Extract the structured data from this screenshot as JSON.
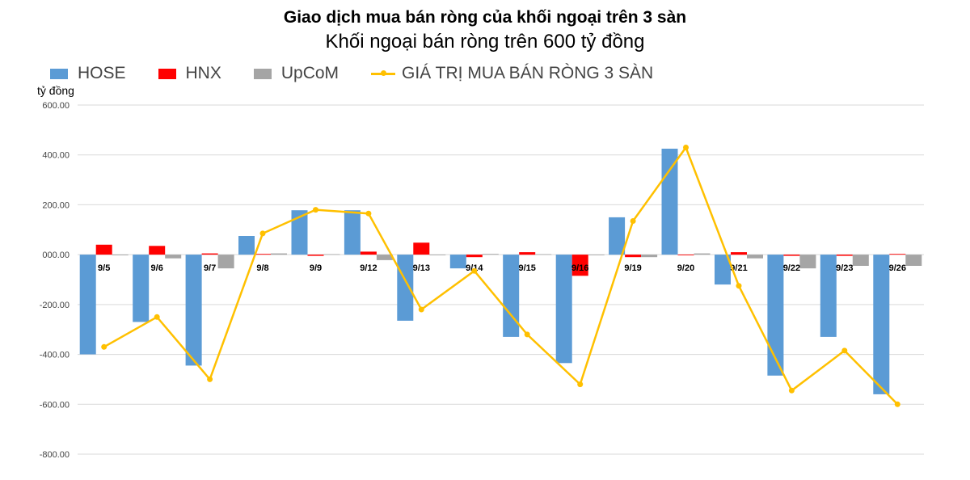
{
  "title": "Giao dịch mua bán ròng của khối ngoại trên 3 sàn",
  "subtitle": "Khối ngoại bán ròng trên 600 tỷ đồng",
  "ylabel": "tỷ đồng",
  "colors": {
    "HOSE": "#5B9BD5",
    "HNX": "#FF0000",
    "UpCoM": "#A5A5A5",
    "line": "#FFC000",
    "grid": "#D9D9D9"
  },
  "chart_data": {
    "type": "bar",
    "categories": [
      "9/5",
      "9/6",
      "9/7",
      "9/8",
      "9/9",
      "9/12",
      "9/13",
      "9/14",
      "9/15",
      "9/16",
      "9/19",
      "9/20",
      "9/21",
      "9/22",
      "9/23",
      "9/26"
    ],
    "series": [
      {
        "name": "HOSE",
        "type": "bar",
        "values": [
          -400,
          -270,
          -445,
          75,
          178,
          178,
          -265,
          -55,
          -330,
          -435,
          150,
          425,
          -120,
          -485,
          -330,
          -560
        ]
      },
      {
        "name": "HNX",
        "type": "bar",
        "values": [
          40,
          35,
          5,
          3,
          -5,
          12,
          48,
          -10,
          10,
          -85,
          -10,
          -3,
          10,
          -5,
          -5,
          3
        ]
      },
      {
        "name": "UpCoM",
        "type": "bar",
        "values": [
          -3,
          -15,
          -55,
          5,
          2,
          -22,
          0,
          3,
          2,
          0,
          -10,
          5,
          -15,
          -55,
          -45,
          -45
        ]
      },
      {
        "name": "GIÁ TRỊ MUA BÁN RÒNG 3 SÀN",
        "type": "line",
        "values": [
          -370,
          -250,
          -500,
          85,
          180,
          165,
          -220,
          -65,
          -320,
          -520,
          135,
          430,
          -125,
          -545,
          -385,
          -600
        ]
      }
    ],
    "yticks": [
      "600.00",
      "400.00",
      "200.00",
      "000.00",
      "-200.00",
      "-400.00",
      "-600.00",
      "-800.00"
    ],
    "ylim": [
      -800,
      600
    ],
    "grid": true,
    "legend": "top-left"
  }
}
